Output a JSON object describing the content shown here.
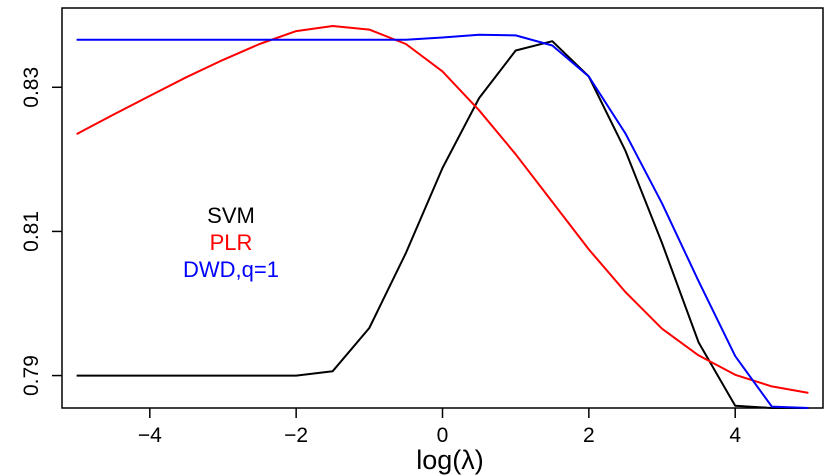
{
  "chart_data": {
    "type": "line",
    "title": "",
    "xlabel": "log(λ)",
    "ylabel": "",
    "xlim": [
      -5.2,
      5.2
    ],
    "ylim": [
      0.7855,
      0.841
    ],
    "x_ticks": [
      -4,
      -2,
      0,
      2,
      4
    ],
    "x_tick_labels": [
      "−4",
      "−2",
      "0",
      "2",
      "4"
    ],
    "y_ticks": [
      0.79,
      0.81,
      0.83
    ],
    "y_tick_labels": [
      "0.79",
      "0.81",
      "0.83"
    ],
    "grid": false,
    "legend_position": "left-middle",
    "series": [
      {
        "name": "SVM",
        "color": "#000000",
        "x": [
          -5,
          -4.5,
          -4,
          -3.5,
          -3,
          -2.5,
          -2,
          -1.5,
          -1,
          -0.5,
          0,
          0.5,
          1,
          1.5,
          2,
          2.5,
          3,
          3.5,
          4,
          4.5,
          5
        ],
        "y": [
          0.79,
          0.79,
          0.79,
          0.79,
          0.79,
          0.79,
          0.79,
          0.7906,
          0.7966,
          0.807,
          0.8188,
          0.8285,
          0.8351,
          0.8364,
          0.8315,
          0.8212,
          0.8084,
          0.7946,
          0.7858,
          0.7855,
          0.7855
        ]
      },
      {
        "name": "PLR",
        "color": "#ff0000",
        "x": [
          -5,
          -4.5,
          -4,
          -3.5,
          -3,
          -2.5,
          -2,
          -1.5,
          -1,
          -0.5,
          0,
          0.5,
          1,
          1.5,
          2,
          2.5,
          3,
          3.5,
          4,
          4.5,
          5
        ],
        "y": [
          0.8235,
          0.8262,
          0.8288,
          0.8314,
          0.8338,
          0.836,
          0.8378,
          0.8385,
          0.838,
          0.836,
          0.8322,
          0.8268,
          0.8207,
          0.8141,
          0.8075,
          0.8016,
          0.7965,
          0.7928,
          0.7901,
          0.7885,
          0.7876
        ]
      },
      {
        "name": "DWD,q=1",
        "color": "#0000ff",
        "x": [
          -5,
          -4.5,
          -4,
          -3.5,
          -3,
          -2.5,
          -2,
          -1.5,
          -1,
          -0.5,
          0,
          0.5,
          1,
          1.5,
          2,
          2.5,
          3,
          3.5,
          4,
          4.5,
          5
        ],
        "y": [
          0.8366,
          0.8366,
          0.8366,
          0.8366,
          0.8366,
          0.8366,
          0.8366,
          0.8366,
          0.8366,
          0.8366,
          0.8369,
          0.8373,
          0.8372,
          0.8358,
          0.8315,
          0.8236,
          0.8139,
          0.8031,
          0.7927,
          0.7857,
          0.7855
        ]
      }
    ]
  }
}
